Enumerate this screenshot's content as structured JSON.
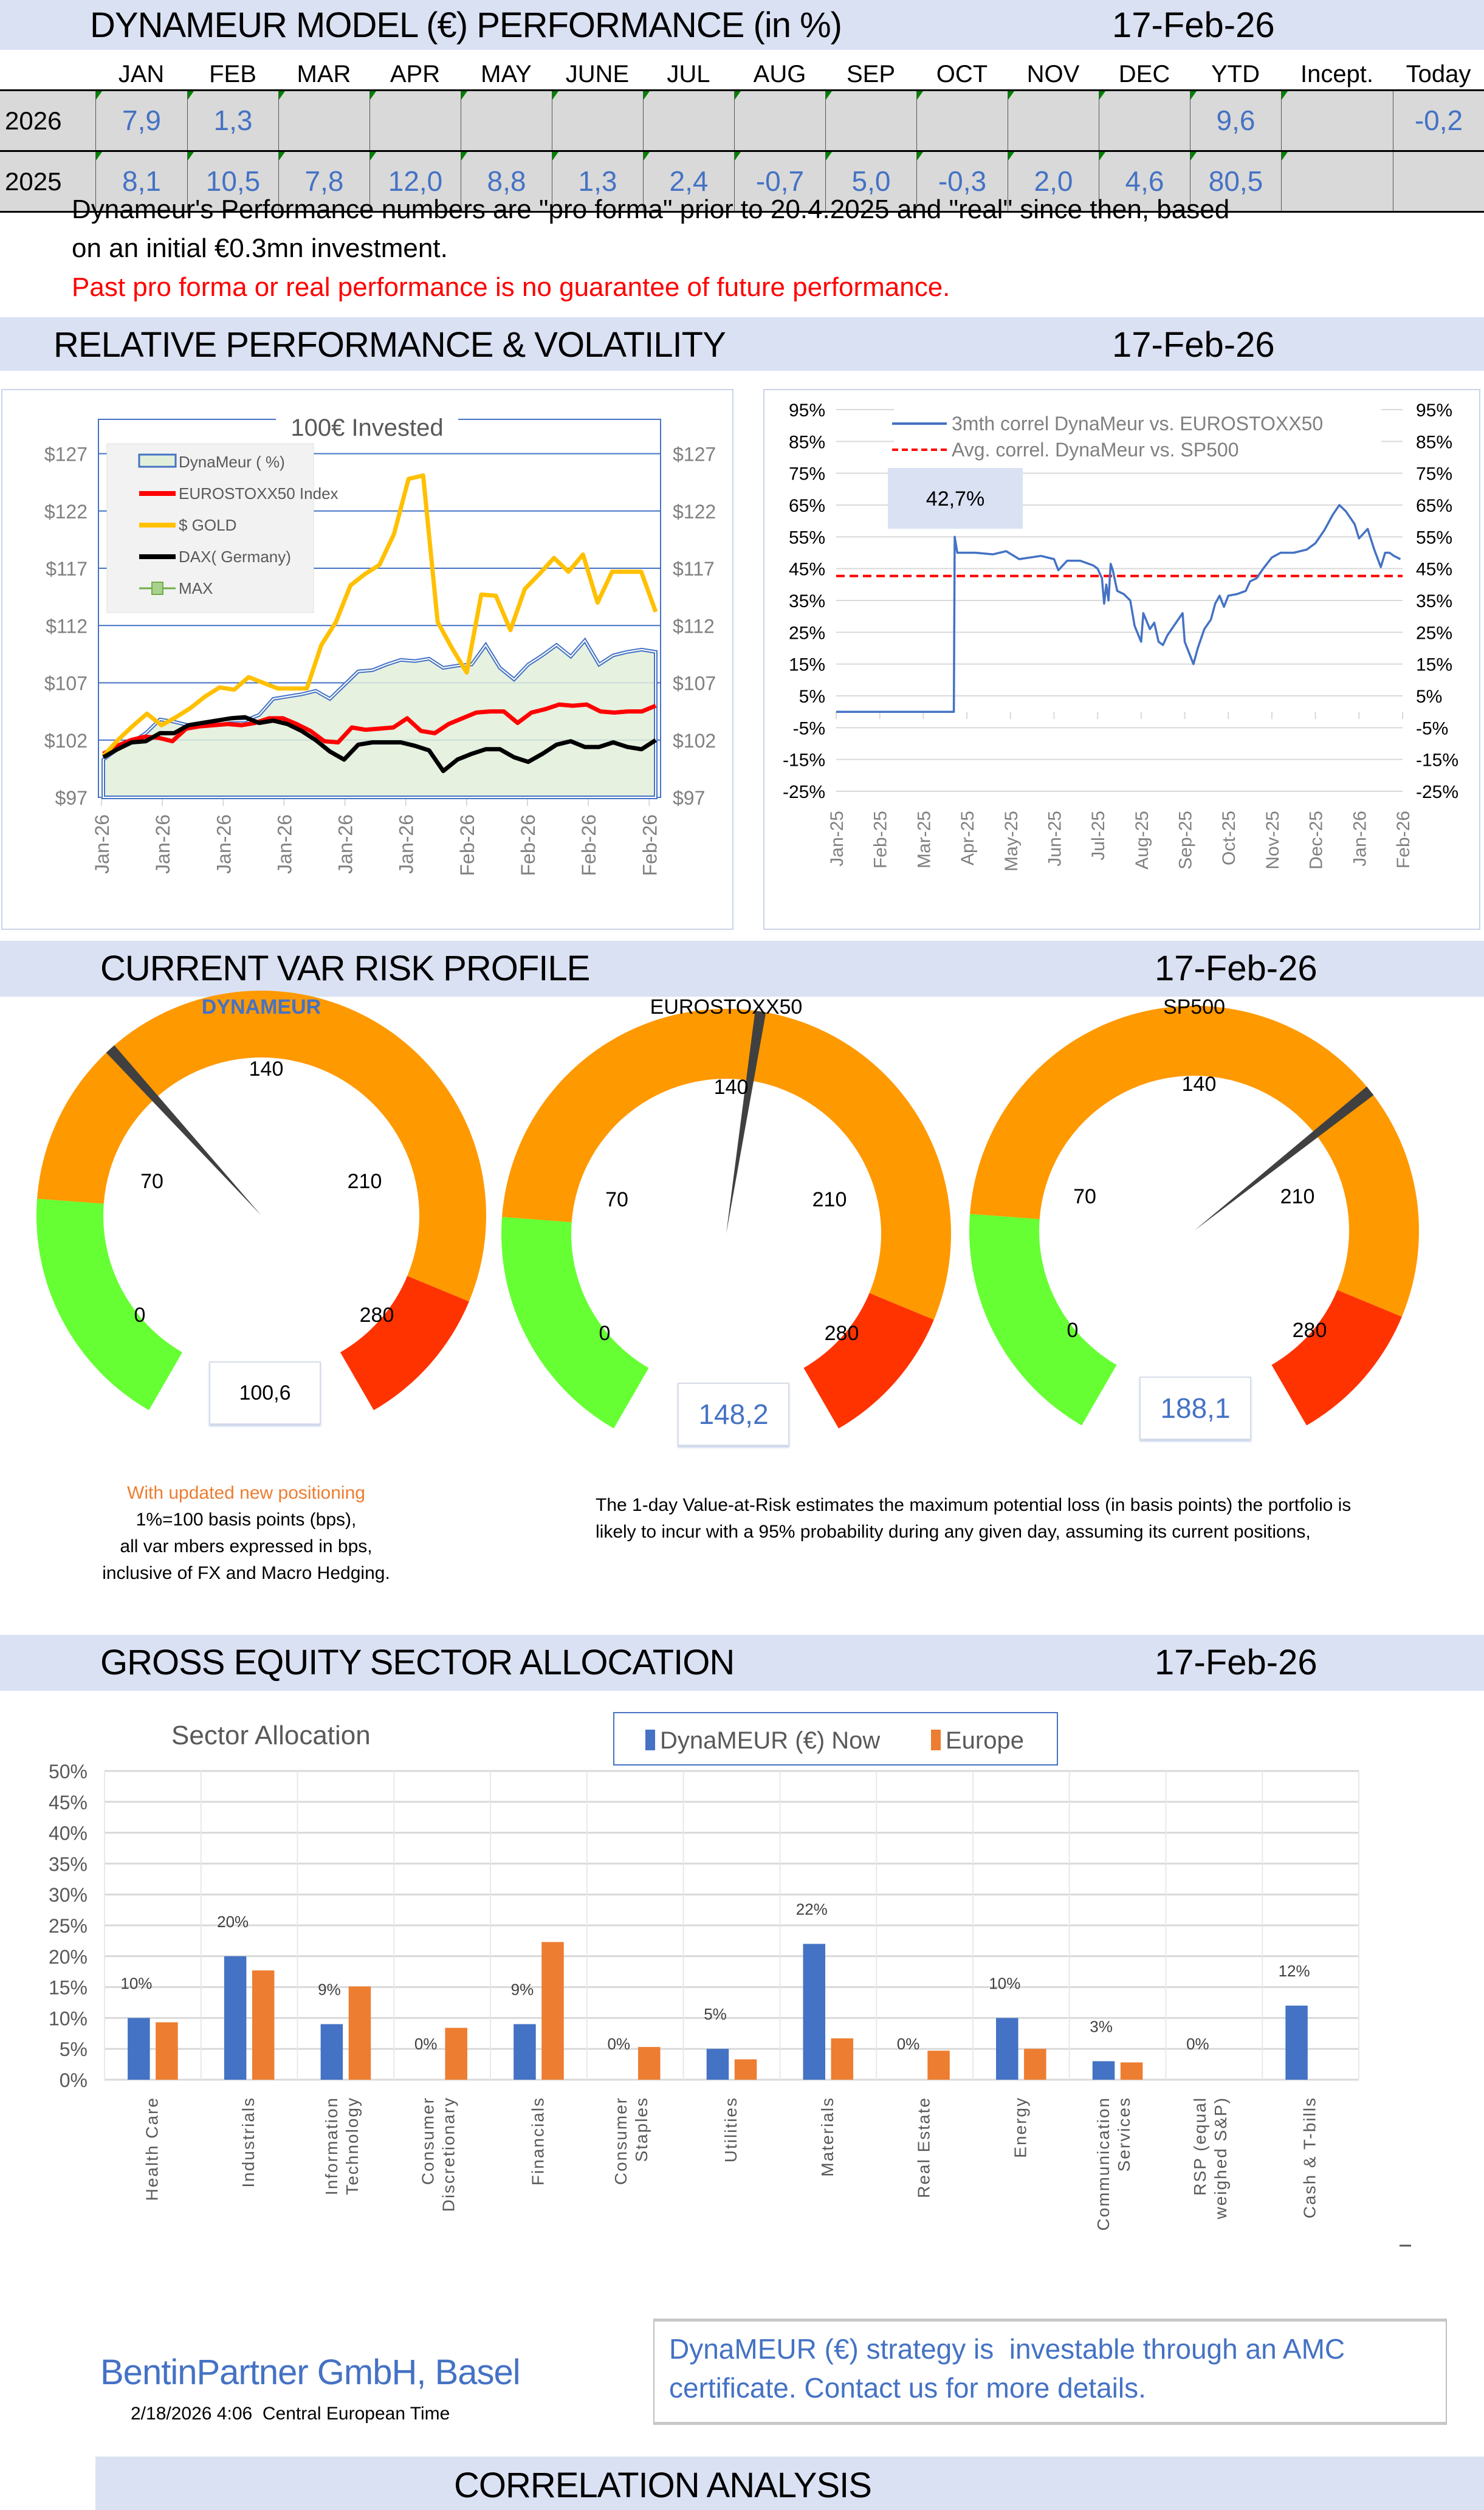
{
  "sections": {
    "performance": {
      "title": "DYNAMEUR MODEL (€) PERFORMANCE (in %)",
      "date": "17-Feb-26"
    },
    "relative": {
      "title": "RELATIVE PERFORMANCE & VOLATILITY",
      "date": "17-Feb-26"
    },
    "var": {
      "title": "CURRENT VAR RISK PROFILE",
      "date": "17-Feb-26"
    },
    "sector": {
      "title": "GROSS EQUITY SECTOR ALLOCATION",
      "date": "17-Feb-26"
    },
    "correlation": {
      "title": "CORRELATION ANALYSIS"
    }
  },
  "perf_table": {
    "columns": [
      "JAN",
      "FEB",
      "MAR",
      "APR",
      "MAY",
      "JUNE",
      "JUL",
      "AUG",
      "SEP",
      "OCT",
      "NOV",
      "DEC",
      "YTD",
      "Incept.",
      "Today"
    ],
    "rows": [
      {
        "year": "2026",
        "values": [
          "7,9",
          "1,3",
          "",
          "",
          "",
          "",
          "",
          "",
          "",
          "",
          "",
          "",
          "9,6",
          "",
          "-0,2"
        ]
      },
      {
        "year": "2025",
        "values": [
          "8,1",
          "10,5",
          "7,8",
          "12,0",
          "8,8",
          "1,3",
          "2,4",
          "-0,7",
          "5,0",
          "-0,3",
          "2,0",
          "4,6",
          "80,5",
          "",
          ""
        ]
      }
    ]
  },
  "notes": {
    "line1": "Dynameur's Performance numbers are \"pro forma\" prior to 20.4.2025 and \"real\" since then, based",
    "line2": "on an initial €0.3mn investment.",
    "disclaimer": "Past pro forma or real performance is no guarantee of future performance."
  },
  "var_notes": {
    "orange": "With updated new positioning",
    "l1": "1%=100 basis points (bps),",
    "l2": "all var mbers expressed in bps,",
    "l3": "inclusive of FX and Macro Hedging.",
    "desc1": "The 1-day Value-at-Risk estimates the maximum potential loss (in basis points) the portfolio is",
    "desc2": "likely to incur with a 95% probability during any given day, assuming its current positions,"
  },
  "gauges": [
    {
      "title": "DYNAMEUR",
      "value": 100.6,
      "value_label": "100,6",
      "min": 0,
      "max": 280,
      "ticks": [
        "0",
        "70",
        "140",
        "210",
        "280"
      ]
    },
    {
      "title": "EUROSTOXX50",
      "value": 148.2,
      "value_label": "148,2",
      "min": 0,
      "max": 280,
      "ticks": [
        "0",
        "70",
        "140",
        "210",
        "280"
      ]
    },
    {
      "title": "SP500",
      "value": 188.1,
      "value_label": "188,1",
      "min": 0,
      "max": 280,
      "ticks": [
        "0",
        "70",
        "140",
        "210",
        "280"
      ]
    }
  ],
  "gauge_zones": {
    "green_end": 60,
    "red_start": 245,
    "colors": {
      "green": "#66FF33",
      "orange": "#FF9900",
      "red": "#FF3300",
      "needle": "#404040"
    }
  },
  "footer": {
    "company": "BentinPartner GmbH, Basel",
    "timestamp": "2/18/2026 4:06  Central European Time",
    "promo1": "DynaMEUR (€) strategy is  investable through an AMC",
    "promo2": "certificate. Contact us for more details."
  },
  "colors": {
    "band": "#DAE1F3",
    "accent_blue": "#4472C4",
    "orange": "#ED7D31",
    "red_text": "#FF0000"
  },
  "chart_data": [
    {
      "type": "line",
      "title": "100€ Invested",
      "ylim": [
        97,
        130
      ],
      "yticks": [
        "$97",
        "$102",
        "$107",
        "$112",
        "$117",
        "$122",
        "$127"
      ],
      "ytick_values": [
        97,
        102,
        107,
        112,
        117,
        122,
        127
      ],
      "xticks": [
        "Jan-26",
        "Jan-26",
        "Jan-26",
        "Jan-26",
        "Jan-26",
        "Jan-26",
        "Feb-26",
        "Feb-26",
        "Feb-26",
        "Feb-26"
      ],
      "legend_position": "top-left",
      "series": [
        {
          "name": "DynaMeur ( %)",
          "kind": "area",
          "color": "#4472C4",
          "values": [
            100.3,
            101.2,
            101.8,
            102.6,
            103.8,
            103.6,
            103.3,
            103.3,
            103.5,
            103.7,
            103.7,
            104.2,
            105.6,
            105.8,
            106.0,
            106.3,
            105.6,
            106.8,
            108.0,
            108.1,
            108.6,
            109.0,
            108.9,
            109.1,
            108.3,
            108.5,
            108.6,
            110.3,
            108.3,
            107.3,
            108.6,
            109.4,
            110.3,
            109.3,
            110.7,
            108.6,
            109.4,
            109.7,
            109.9,
            109.7
          ]
        },
        {
          "name": "EUROSTOXX50 Index",
          "kind": "line",
          "color": "#FF0000",
          "values": [
            100.8,
            101.5,
            102.0,
            102.3,
            102.2,
            101.9,
            103.0,
            103.2,
            103.3,
            103.4,
            103.3,
            103.5,
            103.9,
            103.9,
            103.4,
            102.8,
            101.9,
            101.8,
            103.1,
            102.9,
            103.0,
            103.1,
            103.9,
            102.8,
            102.6,
            103.4,
            103.9,
            104.4,
            104.5,
            104.5,
            103.5,
            104.4,
            104.7,
            105.1,
            105.0,
            105.1,
            104.5,
            104.4,
            104.5,
            104.5,
            105.0
          ]
        },
        {
          "name": "$ GOLD",
          "kind": "line",
          "color": "#FFC000",
          "values": [
            100.6,
            102.0,
            103.2,
            104.3,
            103.3,
            104.0,
            104.8,
            105.8,
            106.6,
            106.4,
            107.5,
            107.0,
            106.5,
            106.5,
            106.5,
            110.3,
            112.3,
            115.5,
            116.5,
            117.3,
            120.0,
            124.8,
            125.1,
            112.3,
            110.0,
            107.9,
            114.7,
            114.6,
            111.6,
            115.2,
            116.5,
            117.9,
            116.7,
            118.2,
            114.0,
            116.7,
            116.7,
            116.7,
            113.2
          ]
        },
        {
          "name": "DAX( Germany)",
          "kind": "line",
          "color": "#000000",
          "values": [
            100.5,
            101.2,
            101.8,
            101.9,
            102.6,
            102.6,
            103.3,
            103.5,
            103.7,
            103.9,
            104.0,
            103.5,
            103.7,
            103.4,
            102.8,
            102.0,
            101.0,
            100.3,
            101.6,
            101.8,
            101.8,
            101.8,
            101.5,
            101.1,
            99.3,
            100.3,
            100.8,
            101.2,
            101.2,
            100.5,
            100.1,
            100.8,
            101.6,
            101.9,
            101.4,
            101.4,
            101.8,
            101.4,
            101.2,
            102.0
          ]
        },
        {
          "name": "MAX",
          "kind": "marker-line",
          "color": "#70AD47",
          "values": []
        }
      ]
    },
    {
      "type": "line",
      "title": "",
      "ylim": [
        -25,
        95
      ],
      "yticks": [
        "95%",
        "85%",
        "75%",
        "65%",
        "55%",
        "45%",
        "35%",
        "25%",
        "15%",
        "5%",
        "-5%",
        "-15%",
        "-25%"
      ],
      "ytick_values": [
        95,
        85,
        75,
        65,
        55,
        45,
        35,
        25,
        15,
        5,
        -5,
        -15,
        -25
      ],
      "xticks": [
        "Jan-25",
        "Feb-25",
        "Mar-25",
        "Apr-25",
        "May-25",
        "Jun-25",
        "Jul-25",
        "Aug-25",
        "Sep-25",
        "Oct-25",
        "Nov-25",
        "Dec-25",
        "Jan-26",
        "Feb-26"
      ],
      "annotation": "42,7%",
      "legend_position": "top",
      "series": [
        {
          "name": "3mth correl DynaMeur vs. EUROSTOXX50",
          "color": "#4472C4",
          "points_month_value": [
            [
              0,
              0
            ],
            [
              2.7,
              0
            ],
            [
              2.72,
              55
            ],
            [
              2.78,
              50
            ],
            [
              3.2,
              50
            ],
            [
              3.6,
              49.5
            ],
            [
              3.9,
              50.5
            ],
            [
              4.2,
              48
            ],
            [
              4.7,
              49
            ],
            [
              5.0,
              48
            ],
            [
              5.1,
              44.5
            ],
            [
              5.3,
              47.5
            ],
            [
              5.6,
              47.5
            ],
            [
              5.9,
              46
            ],
            [
              6.0,
              45
            ],
            [
              6.1,
              42
            ],
            [
              6.15,
              34
            ],
            [
              6.2,
              40
            ],
            [
              6.25,
              35
            ],
            [
              6.3,
              46.5
            ],
            [
              6.35,
              44.5
            ],
            [
              6.45,
              38
            ],
            [
              6.6,
              37
            ],
            [
              6.75,
              35
            ],
            [
              6.85,
              27
            ],
            [
              7.0,
              22
            ],
            [
              7.05,
              31
            ],
            [
              7.2,
              26
            ],
            [
              7.3,
              28
            ],
            [
              7.4,
              22
            ],
            [
              7.5,
              21
            ],
            [
              7.6,
              24
            ],
            [
              7.85,
              29
            ],
            [
              7.95,
              31
            ],
            [
              8.0,
              22
            ],
            [
              8.2,
              15
            ],
            [
              8.3,
              20
            ],
            [
              8.45,
              26
            ],
            [
              8.6,
              29
            ],
            [
              8.7,
              34
            ],
            [
              8.8,
              36.5
            ],
            [
              8.9,
              33
            ],
            [
              9.0,
              36.5
            ],
            [
              9.2,
              37
            ],
            [
              9.4,
              38
            ],
            [
              9.5,
              41
            ],
            [
              9.65,
              42
            ],
            [
              9.8,
              45
            ],
            [
              10.0,
              48.5
            ],
            [
              10.2,
              50
            ],
            [
              10.5,
              50
            ],
            [
              10.8,
              51
            ],
            [
              11.0,
              53
            ],
            [
              11.2,
              57
            ],
            [
              11.4,
              62
            ],
            [
              11.55,
              65
            ],
            [
              11.7,
              63
            ],
            [
              11.9,
              59
            ],
            [
              12.0,
              54.5
            ],
            [
              12.2,
              57.5
            ],
            [
              12.35,
              51
            ],
            [
              12.5,
              45.5
            ],
            [
              12.6,
              50
            ],
            [
              12.7,
              50
            ],
            [
              12.8,
              49
            ],
            [
              12.95,
              48
            ]
          ]
        },
        {
          "name": "Avg. correl. DynaMeur vs. SP500",
          "color": "#FF0000",
          "style": "dashed",
          "value": 42.7
        }
      ]
    },
    {
      "type": "bar",
      "title": "Sector Allocation",
      "ylim": [
        0,
        50
      ],
      "yticks": [
        "0%",
        "5%",
        "10%",
        "15%",
        "20%",
        "25%",
        "30%",
        "35%",
        "40%",
        "45%",
        "50%"
      ],
      "categories": [
        "Health Care",
        "Industrials",
        "Information Technology",
        "Consumer Discretionary",
        "Financials",
        "Consumer Staples",
        "Utilities",
        "Materials",
        "Real Estate",
        "Energy",
        "Communication Services",
        "RSP (equal weighed S&P)",
        "Cash & T-bills"
      ],
      "legend_position": "top",
      "series": [
        {
          "name": "DynaMEUR (€) Now",
          "color": "#4472C4",
          "values": [
            10,
            20,
            9,
            0,
            9,
            0,
            5,
            22,
            0,
            10,
            3,
            0,
            12
          ],
          "labels": [
            "10%",
            "20%",
            "9%",
            "0%",
            "9%",
            "0%",
            "5%",
            "22%",
            "0%",
            "10%",
            "3%",
            "0%",
            "12%"
          ]
        },
        {
          "name": "Europe",
          "color": "#ED7D31",
          "values": [
            9.3,
            17.7,
            15.1,
            8.4,
            22.3,
            5.3,
            3.3,
            6.7,
            4.7,
            5.0,
            2.8,
            null,
            null
          ]
        }
      ]
    }
  ]
}
